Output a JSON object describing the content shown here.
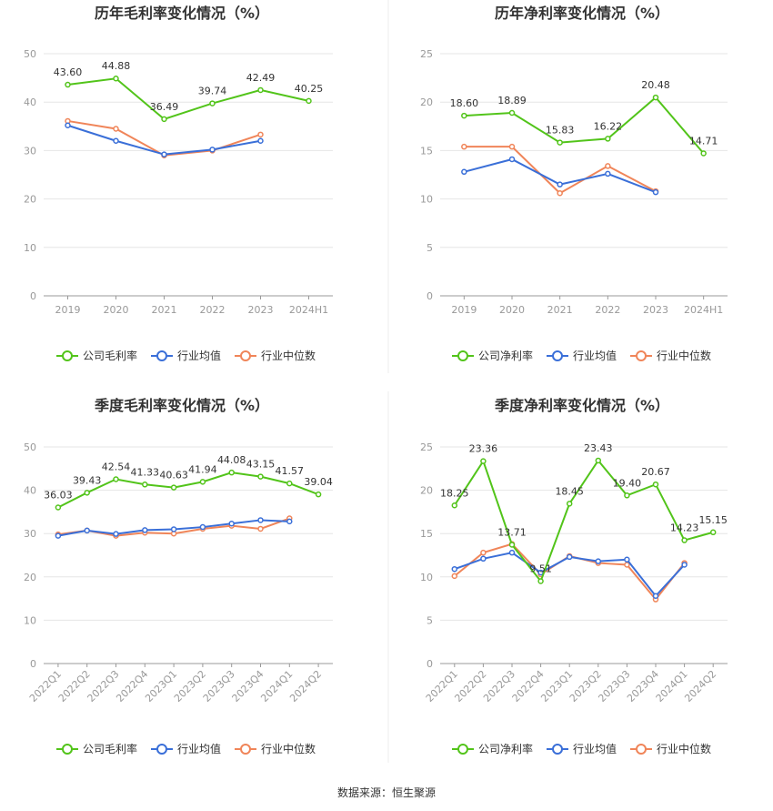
{
  "source": "数据来源：恒生聚源",
  "legend_labels": {
    "industry_avg": "行业均值",
    "industry_median": "行业中位数"
  },
  "colors": {
    "company": "#52c41a",
    "industry_avg": "#3a6fd8",
    "industry_median": "#f08559",
    "grid": "#e6e6e6"
  },
  "chart_data": [
    {
      "type": "line",
      "title": "历年毛利率变化情况（%）",
      "categories": [
        "2019",
        "2020",
        "2021",
        "2022",
        "2023",
        "2024H1"
      ],
      "ylim": [
        0,
        50
      ],
      "yticks": [
        0,
        10,
        20,
        30,
        40,
        50
      ],
      "series": [
        {
          "name": "公司毛利率",
          "values": [
            43.6,
            44.88,
            36.49,
            39.74,
            42.49,
            40.25
          ],
          "labels": [
            "43.60",
            "44.88",
            "36.49",
            "39.74",
            "42.49",
            "40.25"
          ]
        },
        {
          "name": "行业均值",
          "values": [
            35.2,
            32.0,
            29.2,
            30.2,
            32.0,
            null
          ]
        },
        {
          "name": "行业中位数",
          "values": [
            36.1,
            34.5,
            29.0,
            30.0,
            33.3,
            null
          ]
        }
      ]
    },
    {
      "type": "line",
      "title": "历年净利率变化情况（%）",
      "categories": [
        "2019",
        "2020",
        "2021",
        "2022",
        "2023",
        "2024H1"
      ],
      "ylim": [
        0,
        25
      ],
      "yticks": [
        0,
        5,
        10,
        15,
        20,
        25
      ],
      "series": [
        {
          "name": "公司净利率",
          "values": [
            18.6,
            18.89,
            15.83,
            16.22,
            20.48,
            14.71
          ],
          "labels": [
            "18.60",
            "18.89",
            "15.83",
            "16.22",
            "20.48",
            "14.71"
          ]
        },
        {
          "name": "行业均值",
          "values": [
            12.8,
            14.1,
            11.5,
            12.6,
            10.7,
            null
          ]
        },
        {
          "name": "行业中位数",
          "values": [
            15.4,
            15.4,
            10.6,
            13.4,
            10.8,
            null
          ]
        }
      ]
    },
    {
      "type": "line",
      "title": "季度毛利率变化情况（%）",
      "categories": [
        "2022Q1",
        "2022Q2",
        "2022Q3",
        "2022Q4",
        "2023Q1",
        "2023Q2",
        "2023Q3",
        "2023Q4",
        "2024Q1",
        "2024Q2"
      ],
      "ylim": [
        0,
        50
      ],
      "yticks": [
        0,
        10,
        20,
        30,
        40,
        50
      ],
      "series": [
        {
          "name": "公司毛利率",
          "values": [
            36.03,
            39.43,
            42.54,
            41.33,
            40.63,
            41.94,
            44.08,
            43.15,
            41.57,
            39.04
          ],
          "labels": [
            "36.03",
            "39.43",
            "42.54",
            "41.33",
            "40.63",
            "41.94",
            "44.08",
            "43.15",
            "41.57",
            "39.04"
          ]
        },
        {
          "name": "行业均值",
          "values": [
            29.5,
            30.7,
            29.9,
            30.8,
            31.0,
            31.5,
            32.3,
            33.1,
            32.8,
            null
          ]
        },
        {
          "name": "行业中位数",
          "values": [
            29.8,
            30.7,
            29.5,
            30.2,
            30.0,
            31.1,
            31.8,
            31.1,
            33.5,
            null
          ]
        }
      ]
    },
    {
      "type": "line",
      "title": "季度净利率变化情况（%）",
      "categories": [
        "2022Q1",
        "2022Q2",
        "2022Q3",
        "2022Q4",
        "2023Q1",
        "2023Q2",
        "2023Q3",
        "2023Q4",
        "2024Q1",
        "2024Q2"
      ],
      "ylim": [
        0,
        25
      ],
      "yticks": [
        0,
        5,
        10,
        15,
        20,
        25
      ],
      "series": [
        {
          "name": "公司净利率",
          "values": [
            18.25,
            23.36,
            13.71,
            9.51,
            18.45,
            23.43,
            19.4,
            20.67,
            14.23,
            15.15
          ],
          "labels": [
            "18.25",
            "23.36",
            "13.71",
            "9.51",
            "18.45",
            "23.43",
            "19.40",
            "20.67",
            "14.23",
            "15.15"
          ]
        },
        {
          "name": "行业均值",
          "values": [
            10.9,
            12.1,
            12.8,
            10.5,
            12.3,
            11.8,
            12.0,
            7.8,
            11.4,
            null
          ]
        },
        {
          "name": "行业中位数",
          "values": [
            10.1,
            12.8,
            13.8,
            10.3,
            12.4,
            11.6,
            11.4,
            7.4,
            11.6,
            null
          ]
        }
      ]
    }
  ]
}
